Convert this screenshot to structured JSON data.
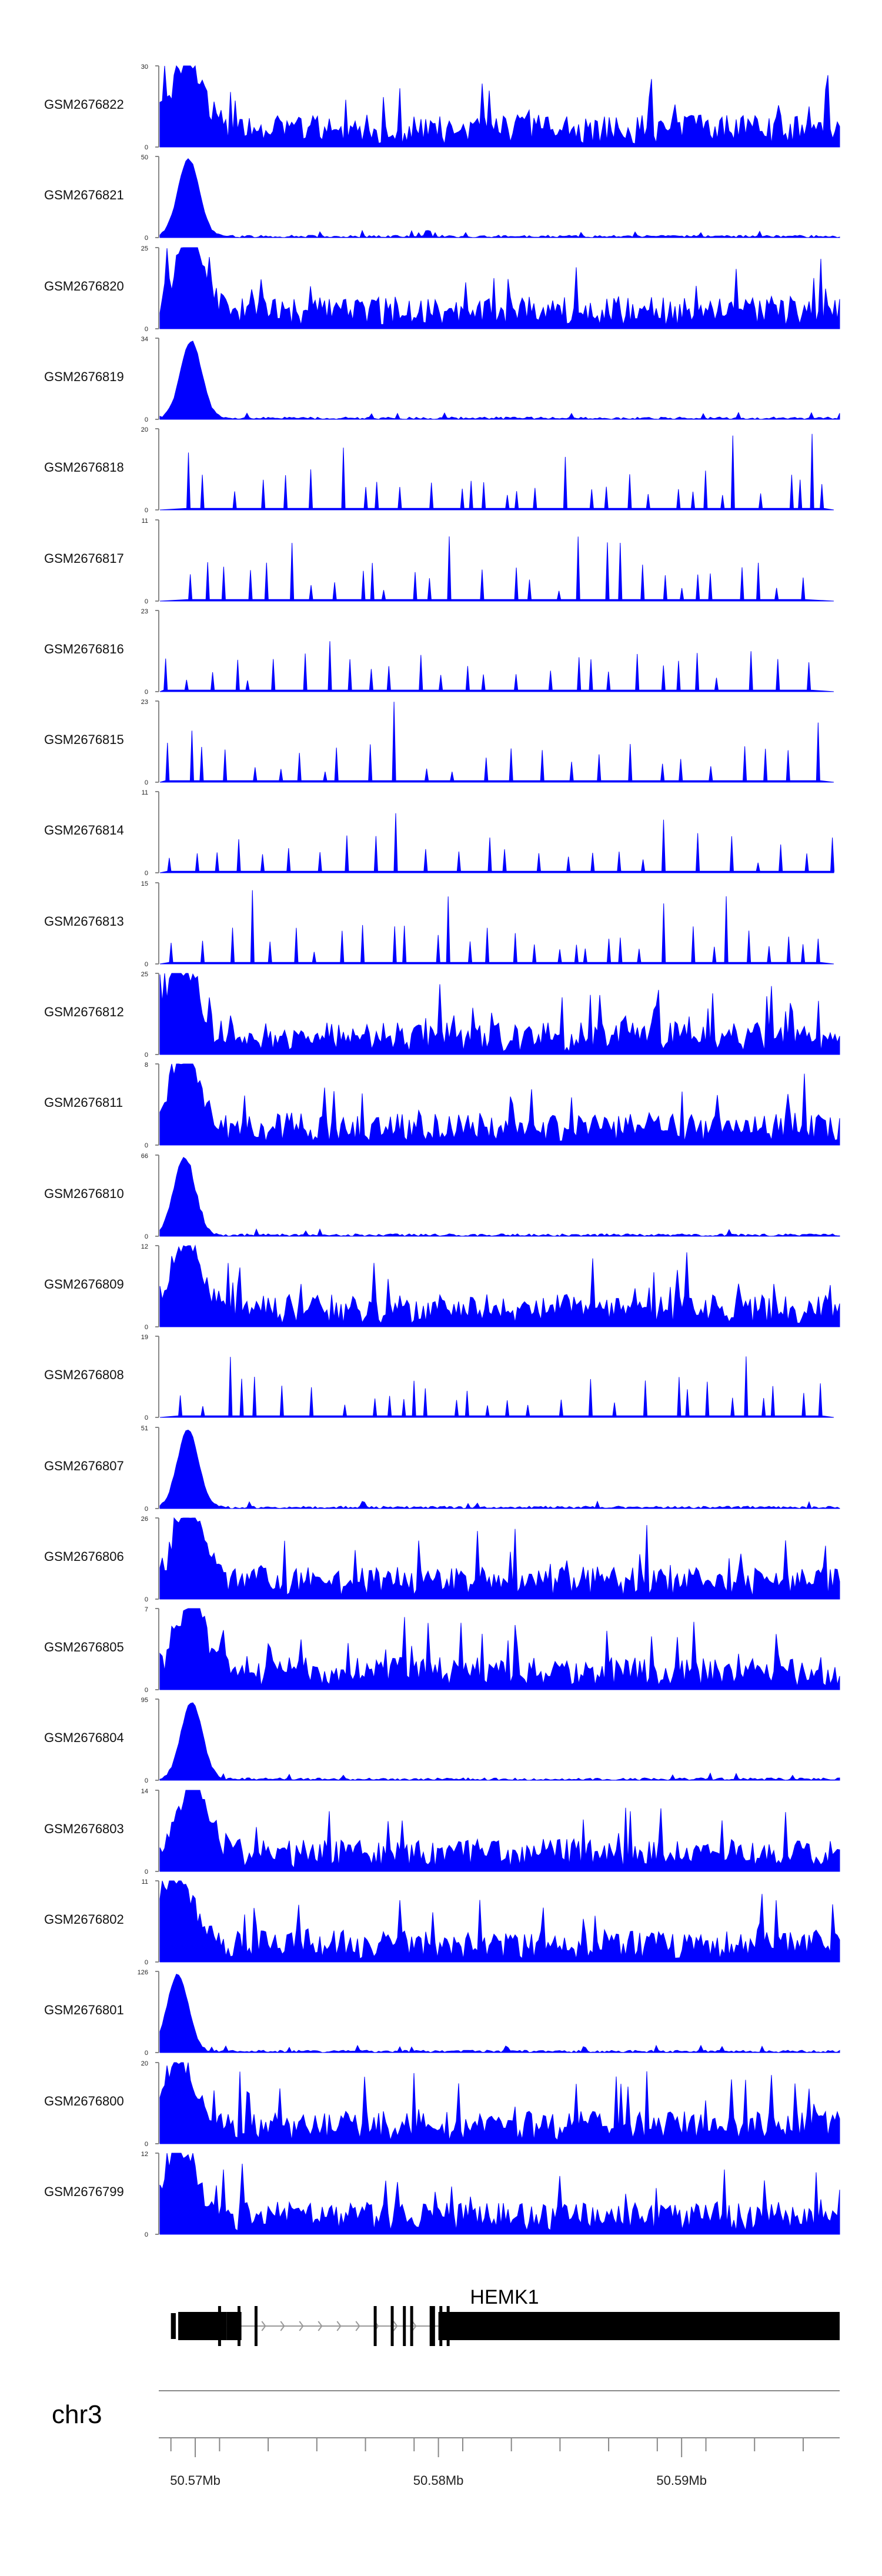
{
  "chart_data": {
    "type": "area",
    "title": "",
    "chromosome": "chr3",
    "xlim": [
      50.5685,
      50.5965
    ],
    "x_unit": "Mb",
    "x_ticks": [
      {
        "value": 50.57,
        "label": "50.57Mb"
      },
      {
        "value": 50.58,
        "label": "50.58Mb"
      },
      {
        "value": 50.59,
        "label": "50.59Mb"
      }
    ],
    "tracks": [
      {
        "name": "GSM2676822",
        "ymax": 30,
        "ymin_label": "0",
        "ymax_label": "30"
      },
      {
        "name": "GSM2676821",
        "ymax": 50,
        "ymin_label": "0",
        "ymax_label": "50"
      },
      {
        "name": "GSM2676820",
        "ymax": 25,
        "ymin_label": "0",
        "ymax_label": "25"
      },
      {
        "name": "GSM2676819",
        "ymax": 34,
        "ymin_label": "0",
        "ymax_label": "34"
      },
      {
        "name": "GSM2676818",
        "ymax": 20,
        "ymin_label": "0",
        "ymax_label": "20"
      },
      {
        "name": "GSM2676817",
        "ymax": 11,
        "ymin_label": "0",
        "ymax_label": "11"
      },
      {
        "name": "GSM2676816",
        "ymax": 23,
        "ymin_label": "0",
        "ymax_label": "23"
      },
      {
        "name": "GSM2676815",
        "ymax": 23,
        "ymin_label": "0",
        "ymax_label": "23"
      },
      {
        "name": "GSM2676814",
        "ymax": 11,
        "ymin_label": "0",
        "ymax_label": "11"
      },
      {
        "name": "GSM2676813",
        "ymax": 15,
        "ymin_label": "0",
        "ymax_label": "15"
      },
      {
        "name": "GSM2676812",
        "ymax": 25,
        "ymin_label": "0",
        "ymax_label": "25"
      },
      {
        "name": "GSM2676811",
        "ymax": 8,
        "ymin_label": "0",
        "ymax_label": "8"
      },
      {
        "name": "GSM2676810",
        "ymax": 66,
        "ymin_label": "0",
        "ymax_label": "66"
      },
      {
        "name": "GSM2676809",
        "ymax": 12,
        "ymin_label": "0",
        "ymax_label": "12"
      },
      {
        "name": "GSM2676808",
        "ymax": 19,
        "ymin_label": "0",
        "ymax_label": "19"
      },
      {
        "name": "GSM2676807",
        "ymax": 51,
        "ymin_label": "0",
        "ymax_label": "51"
      },
      {
        "name": "GSM2676806",
        "ymax": 26,
        "ymin_label": "0",
        "ymax_label": "26"
      },
      {
        "name": "GSM2676805",
        "ymax": 7,
        "ymin_label": "0",
        "ymax_label": "7"
      },
      {
        "name": "GSM2676804",
        "ymax": 95,
        "ymin_label": "0",
        "ymax_label": "95"
      },
      {
        "name": "GSM2676803",
        "ymax": 14,
        "ymin_label": "0",
        "ymax_label": "14"
      },
      {
        "name": "GSM2676802",
        "ymax": 11,
        "ymin_label": "0",
        "ymax_label": "11"
      },
      {
        "name": "GSM2676801",
        "ymax": 126,
        "ymin_label": "0",
        "ymax_label": "126"
      },
      {
        "name": "GSM2676800",
        "ymax": 20,
        "ymin_label": "0",
        "ymax_label": "20"
      },
      {
        "name": "GSM2676799",
        "ymax": 12,
        "ymin_label": "0",
        "ymax_label": "12"
      }
    ],
    "gene": {
      "name": "HEMK1",
      "strand": "+",
      "thin_exons_mb": [
        [
          50.569,
          50.5692
        ]
      ],
      "thick_segments_mb": [
        [
          50.5693,
          50.5713
        ],
        [
          50.5713,
          50.5719
        ],
        [
          50.58,
          50.5965
        ]
      ],
      "exon_lines_mb": [
        50.571,
        50.5718,
        50.5725,
        50.5774,
        50.5781,
        50.5786,
        50.5789,
        50.5797,
        50.5798,
        50.5801,
        50.5804
      ]
    }
  },
  "colors": {
    "signal": "#0000ff",
    "axis": "#888888",
    "gene": "#000000",
    "intron": "#999999"
  }
}
